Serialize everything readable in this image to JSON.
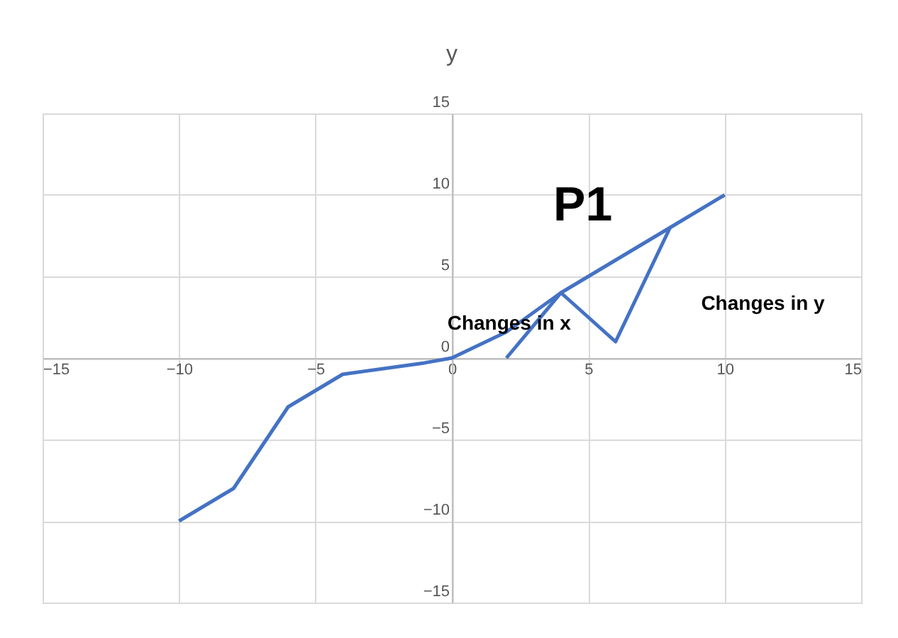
{
  "chart_data": {
    "type": "line",
    "title": "y",
    "series": [
      {
        "color": "#4472c4",
        "x": [
          -10,
          -8,
          -6,
          -4,
          -1,
          0,
          2,
          4,
          8,
          10
        ],
        "values": [
          -10,
          -8,
          -3,
          -1,
          -0.3,
          0,
          1.6,
          4,
          8,
          10
        ]
      },
      {
        "color": "#4472c4",
        "x": [
          2,
          4,
          6,
          8
        ],
        "values": [
          0,
          4,
          1,
          8
        ]
      }
    ],
    "xlim": [
      -15,
      15
    ],
    "xticks": [
      -15,
      -10,
      -5,
      0,
      5,
      10,
      15
    ],
    "ylim": [
      -15,
      15
    ],
    "yticks": [
      -15,
      -10,
      -5,
      0,
      5,
      10,
      15
    ],
    "grid": true,
    "marker": "none",
    "line_style": "solid",
    "annotations": [
      "P1",
      "Changes in x",
      "Changes in y"
    ]
  }
}
